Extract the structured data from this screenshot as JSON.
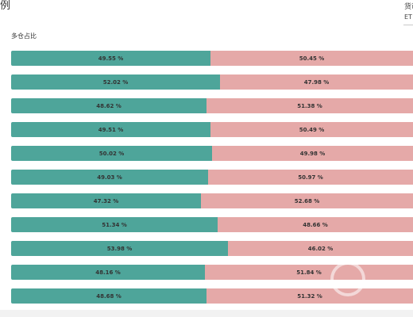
{
  "page": {
    "title_fragment": "例",
    "currency_label": "货币",
    "currency_value": "ET"
  },
  "chart_data": {
    "type": "bar",
    "stacked": true,
    "orientation": "horizontal",
    "series_label": "多仓占比",
    "colors": {
      "long": "#4ea59a",
      "short": "#e5a9a8"
    },
    "rows": [
      {
        "long": 49.55,
        "short": 50.45,
        "long_label": "49.55 %",
        "short_label": "50.45 %"
      },
      {
        "long": 52.02,
        "short": 47.98,
        "long_label": "52.02 %",
        "short_label": "47.98 %"
      },
      {
        "long": 48.62,
        "short": 51.38,
        "long_label": "48.62 %",
        "short_label": "51.38 %"
      },
      {
        "long": 49.51,
        "short": 50.49,
        "long_label": "49.51 %",
        "short_label": "50.49 %"
      },
      {
        "long": 50.02,
        "short": 49.98,
        "long_label": "50.02 %",
        "short_label": "49.98 %"
      },
      {
        "long": 49.03,
        "short": 50.97,
        "long_label": "49.03 %",
        "short_label": "50.97 %"
      },
      {
        "long": 47.32,
        "short": 52.68,
        "long_label": "47.32 %",
        "short_label": "52.68 %"
      },
      {
        "long": 51.34,
        "short": 48.66,
        "long_label": "51.34 %",
        "short_label": "48.66 %"
      },
      {
        "long": 53.98,
        "short": 46.02,
        "long_label": "53.98 %",
        "short_label": "46.02 %"
      },
      {
        "long": 48.16,
        "short": 51.84,
        "long_label": "48.16 %",
        "short_label": "51.84 %"
      },
      {
        "long": 48.68,
        "short": 51.32,
        "long_label": "48.68 %",
        "short_label": "51.32 %"
      }
    ]
  }
}
